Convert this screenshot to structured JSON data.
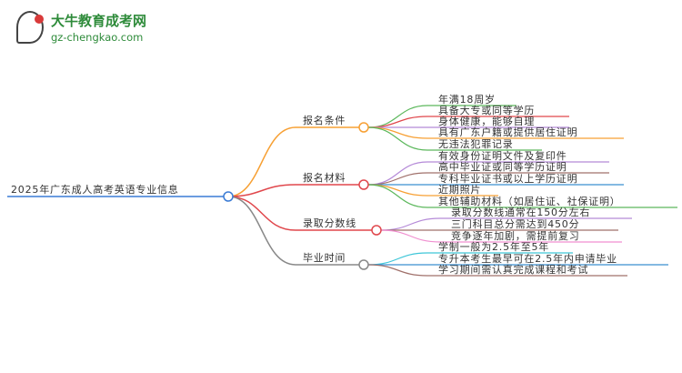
{
  "logo": {
    "title": "大牛教育成考网",
    "url": "gz-chengkao.com",
    "mark": "大牛"
  },
  "root": {
    "label": "2025年广东成人高考英语专业信息",
    "color": "#3a7bd5"
  },
  "branches": [
    {
      "label": "报名条件",
      "color": "#f7a034",
      "leaves": [
        {
          "label": "年满18周岁",
          "color": "#5cb85c"
        },
        {
          "label": "具备大专或同等学历",
          "color": "#e0474c"
        },
        {
          "label": "身体健康，能够自理",
          "color": "#b58ad8"
        },
        {
          "label": "具有广东户籍或提供居住证明",
          "color": "#f7a034"
        },
        {
          "label": "无违法犯罪记录",
          "color": "#5cb85c"
        }
      ]
    },
    {
      "label": "报名材料",
      "color": "#e0474c",
      "leaves": [
        {
          "label": "有效身份证明文件及复印件",
          "color": "#b58ad8"
        },
        {
          "label": "高中毕业证或同等学历证明",
          "color": "#a0706a"
        },
        {
          "label": "专科毕业证书或以上学历证明",
          "color": "#3a8fd0"
        },
        {
          "label": "近期照片",
          "color": "#f7a034"
        },
        {
          "label": "其他辅助材料（如居住证、社保证明）",
          "color": "#5cb85c"
        }
      ]
    },
    {
      "label": "录取分数线",
      "color": "#e0474c",
      "leaves": [
        {
          "label": "录取分数线通常在150分左右",
          "color": "#b58ad8"
        },
        {
          "label": "三门科目总分需达到450分",
          "color": "#a0706a"
        },
        {
          "label": "竞争逐年加剧，需提前复习",
          "color": "#f08fd0"
        }
      ]
    },
    {
      "label": "毕业时间",
      "color": "#888888",
      "leaves": [
        {
          "label": "学制一般为2.5年至5年",
          "color": "#3ec6d8"
        },
        {
          "label": "专升本考生最早可在2.5年内申请毕业",
          "color": "#3a8fd0"
        },
        {
          "label": "学习期间需认真完成课程和考试",
          "color": "#a0706a"
        }
      ]
    }
  ]
}
